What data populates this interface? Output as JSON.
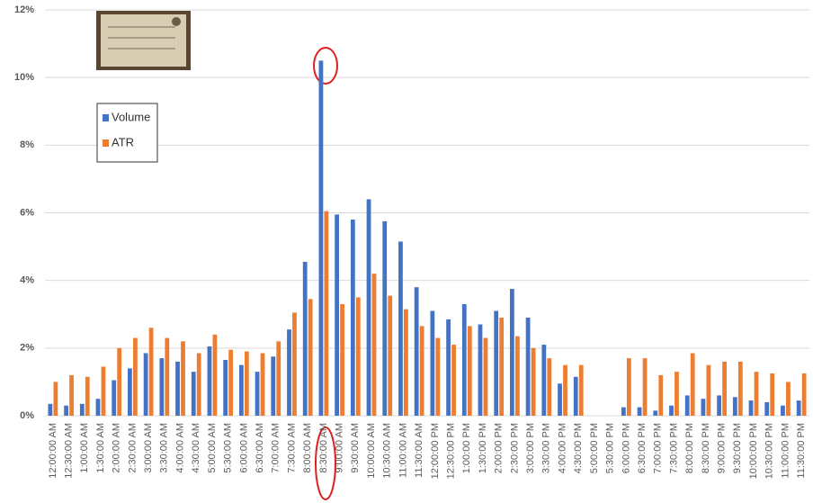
{
  "chart_data": {
    "type": "bar",
    "categories": [
      "12:00:00 AM",
      "12:30:00 AM",
      "1:00:00 AM",
      "1:30:00 AM",
      "2:00:00 AM",
      "2:30:00 AM",
      "3:00:00 AM",
      "3:30:00 AM",
      "4:00:00 AM",
      "4:30:00 AM",
      "5:00:00 AM",
      "5:30:00 AM",
      "6:00:00 AM",
      "6:30:00 AM",
      "7:00:00 AM",
      "7:30:00 AM",
      "8:00:00 AM",
      "8:30:00 AM",
      "9:00:00 AM",
      "9:30:00 AM",
      "10:00:00 AM",
      "10:30:00 AM",
      "11:00:00 AM",
      "11:30:00 AM",
      "12:00:00 PM",
      "12:30:00 PM",
      "1:00:00 PM",
      "1:30:00 PM",
      "2:00:00 PM",
      "2:30:00 PM",
      "3:00:00 PM",
      "3:30:00 PM",
      "4:00:00 PM",
      "4:30:00 PM",
      "5:00:00 PM",
      "5:30:00 PM",
      "6:00:00 PM",
      "6:30:00 PM",
      "7:00:00 PM",
      "7:30:00 PM",
      "8:00:00 PM",
      "8:30:00 PM",
      "9:00:00 PM",
      "9:30:00 PM",
      "10:00:00 PM",
      "10:30:00 PM",
      "11:00:00 PM",
      "11:30:00 PM"
    ],
    "series": [
      {
        "name": "Volume",
        "color": "#4472c4",
        "values": [
          0.35,
          0.3,
          0.35,
          0.5,
          1.05,
          1.4,
          1.85,
          1.7,
          1.6,
          1.3,
          2.05,
          1.65,
          1.5,
          1.3,
          1.75,
          2.55,
          4.55,
          10.5,
          5.95,
          5.8,
          6.4,
          5.75,
          5.15,
          3.8,
          3.1,
          2.85,
          3.3,
          2.7,
          3.1,
          3.75,
          2.9,
          2.1,
          0.95,
          1.15,
          0,
          0,
          0.25,
          0.25,
          0.15,
          0.3,
          0.6,
          0.5,
          0.6,
          0.55,
          0.45,
          0.4,
          0.3,
          0.45
        ]
      },
      {
        "name": "ATR",
        "color": "#ed7d31",
        "values": [
          1.0,
          1.2,
          1.15,
          1.45,
          2.0,
          2.3,
          2.6,
          2.3,
          2.2,
          1.85,
          2.4,
          1.95,
          1.9,
          1.85,
          2.2,
          3.05,
          3.45,
          6.05,
          3.3,
          3.5,
          4.2,
          3.55,
          3.15,
          2.65,
          2.3,
          2.1,
          2.65,
          2.3,
          2.9,
          2.35,
          2.0,
          1.7,
          1.5,
          1.5,
          0,
          0,
          1.7,
          1.7,
          1.2,
          1.3,
          1.85,
          1.5,
          1.6,
          1.6,
          1.3,
          1.25,
          1.0,
          1.25
        ]
      }
    ],
    "ylim": [
      0,
      12
    ],
    "yticks": [
      {
        "value": 0,
        "label": "0%"
      },
      {
        "value": 2,
        "label": "2%"
      },
      {
        "value": 4,
        "label": "4%"
      },
      {
        "value": 6,
        "label": "6%"
      },
      {
        "value": 8,
        "label": "8%"
      },
      {
        "value": 10,
        "label": "10%"
      },
      {
        "value": 12,
        "label": "12%"
      }
    ],
    "grid": true,
    "legend": "top-left"
  }
}
